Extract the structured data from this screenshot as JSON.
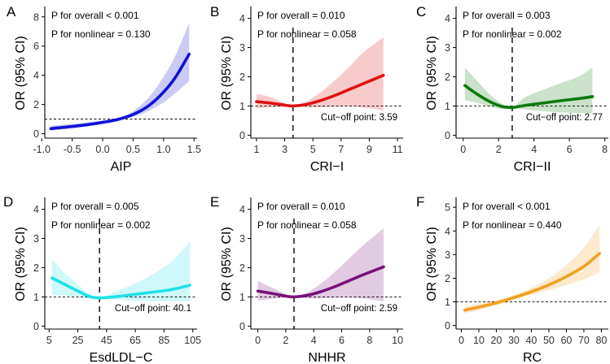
{
  "chart_data": [
    {
      "panel": "A",
      "type": "line",
      "xlabel": "AIP",
      "ylabel": "OR (95% CI)",
      "color": "#1010d8",
      "xlim": [
        -0.95,
        1.55
      ],
      "ylim": [
        -0.3,
        8.6
      ],
      "xticks": [
        -1.0,
        -0.5,
        0.0,
        0.5,
        1.0,
        1.5
      ],
      "xtick_labels": [
        "-1.0",
        "-0.5",
        "0.0",
        "0.5",
        "1.0",
        "1.5"
      ],
      "yticks": [
        0,
        2,
        4,
        6,
        8
      ],
      "ytick_labels": [
        "0",
        "2",
        "4",
        "6",
        "8"
      ],
      "reference_y": 1,
      "p_overall": "P for overall < 0.001",
      "p_nonlinear": "P for nonlinear = 0.130",
      "x": [
        -0.85,
        -0.5,
        -0.25,
        0.0,
        0.25,
        0.5,
        0.75,
        1.0,
        1.2,
        1.42
      ],
      "y": [
        0.35,
        0.5,
        0.62,
        0.78,
        0.98,
        1.32,
        1.9,
        2.85,
        3.9,
        5.45
      ],
      "lower": [
        0.22,
        0.36,
        0.5,
        0.68,
        0.9,
        1.15,
        1.55,
        2.15,
        2.8,
        3.6
      ],
      "upper": [
        0.55,
        0.68,
        0.78,
        0.9,
        1.08,
        1.55,
        2.45,
        3.9,
        5.4,
        7.6
      ]
    },
    {
      "panel": "B",
      "type": "line",
      "xlabel": "CRI−I",
      "ylabel": "OR (95% CI)",
      "color": "#e01010",
      "xlim": [
        0.6,
        11.4
      ],
      "ylim": [
        -0.1,
        4.35
      ],
      "xticks": [
        1,
        3,
        5,
        7,
        9,
        11
      ],
      "xtick_labels": [
        "1",
        "3",
        "5",
        "7",
        "9",
        "11"
      ],
      "yticks": [
        0,
        1,
        2,
        3,
        4
      ],
      "ytick_labels": [
        "0",
        "1",
        "2",
        "3",
        "4"
      ],
      "reference_y": 1,
      "cutoff_x": 3.59,
      "cutoff_label": "Cut−off point: 3.59",
      "p_overall": "P for overall = 0.010",
      "p_nonlinear": "P for nonlinear = 0.058",
      "x": [
        1,
        2,
        3,
        3.59,
        4.5,
        5.5,
        6.5,
        7.5,
        8.5,
        10
      ],
      "y": [
        1.15,
        1.1,
        1.03,
        1.0,
        1.05,
        1.18,
        1.35,
        1.55,
        1.75,
        2.05
      ],
      "lower": [
        0.92,
        0.95,
        0.97,
        1.0,
        0.95,
        0.95,
        0.97,
        0.98,
        0.95,
        0.85
      ],
      "upper": [
        1.42,
        1.3,
        1.1,
        1.0,
        1.15,
        1.45,
        1.85,
        2.3,
        2.8,
        3.35
      ]
    },
    {
      "panel": "C",
      "type": "line",
      "xlabel": "CRI−II",
      "ylabel": "OR (95% CI)",
      "color": "#0b7a0b",
      "xlim": [
        -0.4,
        8.2
      ],
      "ylim": [
        -0.1,
        4.35
      ],
      "xticks": [
        0,
        2,
        4,
        6,
        8
      ],
      "xtick_labels": [
        "0",
        "2",
        "4",
        "6",
        "8"
      ],
      "yticks": [
        0,
        1,
        2,
        3,
        4
      ],
      "ytick_labels": [
        "0",
        "1",
        "2",
        "3",
        "4"
      ],
      "reference_y": 1,
      "cutoff_x": 2.77,
      "cutoff_label": "Cut−off point: 2.77",
      "p_overall": "P for overall = 0.003",
      "p_nonlinear": "P for nonlinear = 0.002",
      "x": [
        0.1,
        0.8,
        1.5,
        2.2,
        2.77,
        3.5,
        4.5,
        5.5,
        6.5,
        7.3
      ],
      "y": [
        1.7,
        1.4,
        1.15,
        0.98,
        0.95,
        1.02,
        1.1,
        1.18,
        1.25,
        1.32
      ],
      "lower": [
        1.2,
        1.1,
        0.98,
        0.9,
        0.95,
        0.88,
        0.82,
        0.78,
        0.76,
        0.75
      ],
      "upper": [
        2.32,
        1.85,
        1.4,
        1.08,
        0.95,
        1.3,
        1.55,
        1.78,
        2.0,
        2.32
      ]
    },
    {
      "panel": "D",
      "type": "line",
      "xlabel": "EsdLDL−C",
      "ylabel": "OR (95% CI)",
      "color": "#20e0e8",
      "xlim": [
        2,
        108
      ],
      "ylim": [
        -0.1,
        4.35
      ],
      "xticks": [
        5,
        25,
        45,
        65,
        85,
        105
      ],
      "xtick_labels": [
        "5",
        "25",
        "45",
        "65",
        "85",
        "105"
      ],
      "yticks": [
        0,
        1,
        2,
        3,
        4
      ],
      "ytick_labels": [
        "0",
        "1",
        "2",
        "3",
        "4"
      ],
      "reference_y": 1,
      "cutoff_x": 40.1,
      "cutoff_label": "Cut−off point: 40.1",
      "p_overall": "P for overall = 0.005",
      "p_nonlinear": "P for nonlinear = 0.002",
      "x": [
        7,
        15,
        25,
        33,
        40.1,
        50,
        62,
        75,
        90,
        103
      ],
      "y": [
        1.65,
        1.45,
        1.2,
        1.02,
        0.97,
        1.0,
        1.07,
        1.15,
        1.25,
        1.4
      ],
      "lower": [
        1.05,
        1.05,
        1.0,
        0.93,
        0.97,
        0.92,
        0.88,
        0.86,
        0.86,
        0.85
      ],
      "upper": [
        2.3,
        1.85,
        1.42,
        1.1,
        0.97,
        1.15,
        1.4,
        1.72,
        2.2,
        2.9
      ]
    },
    {
      "panel": "E",
      "type": "line",
      "xlabel": "NHHR",
      "ylabel": "OR (95% CI)",
      "color": "#7a107a",
      "xlim": [
        -0.5,
        10.4
      ],
      "ylim": [
        -0.1,
        4.35
      ],
      "xticks": [
        0,
        2,
        4,
        6,
        8,
        10
      ],
      "xtick_labels": [
        "0",
        "2",
        "4",
        "6",
        "8",
        "10"
      ],
      "yticks": [
        0,
        1,
        2,
        3,
        4
      ],
      "ytick_labels": [
        "0",
        "1",
        "2",
        "3",
        "4"
      ],
      "reference_y": 1,
      "cutoff_x": 2.59,
      "cutoff_label": "Cut−off point: 2.59",
      "p_overall": "P for overall = 0.010",
      "p_nonlinear": "P for nonlinear = 0.058",
      "x": [
        0,
        1,
        2,
        2.59,
        3.5,
        4.5,
        5.5,
        6.5,
        7.5,
        9
      ],
      "y": [
        1.2,
        1.12,
        1.03,
        1.0,
        1.05,
        1.18,
        1.35,
        1.55,
        1.75,
        2.03
      ],
      "lower": [
        0.88,
        0.93,
        0.97,
        1.0,
        0.95,
        0.95,
        0.97,
        0.98,
        0.95,
        0.85
      ],
      "upper": [
        1.55,
        1.32,
        1.1,
        1.0,
        1.15,
        1.45,
        1.85,
        2.3,
        2.75,
        3.35
      ]
    },
    {
      "panel": "F",
      "type": "line",
      "xlabel": "RC",
      "ylabel": "OR (95% CI)",
      "color": "#f0a020",
      "xlim": [
        -3,
        84
      ],
      "ylim": [
        -0.15,
        5.35
      ],
      "xticks": [
        0,
        10,
        20,
        30,
        40,
        50,
        60,
        70,
        80
      ],
      "xtick_labels": [
        "0",
        "10",
        "20",
        "30",
        "40",
        "50",
        "60",
        "70",
        "80"
      ],
      "yticks": [
        0,
        1,
        2,
        3,
        4,
        5
      ],
      "ytick_labels": [
        "0",
        "1",
        "2",
        "3",
        "4",
        "5"
      ],
      "reference_y": 1,
      "p_overall": "P for overall < 0.001",
      "p_nonlinear": "P for nonlinear = 0.440",
      "x": [
        2,
        10,
        20,
        30,
        40,
        50,
        60,
        70,
        79
      ],
      "y": [
        0.65,
        0.78,
        0.96,
        1.18,
        1.43,
        1.72,
        2.07,
        2.5,
        3.05
      ],
      "lower": [
        0.5,
        0.65,
        0.85,
        1.08,
        1.3,
        1.5,
        1.72,
        1.95,
        2.25
      ],
      "upper": [
        0.82,
        0.93,
        1.08,
        1.3,
        1.6,
        2.0,
        2.55,
        3.3,
        4.25
      ]
    }
  ]
}
